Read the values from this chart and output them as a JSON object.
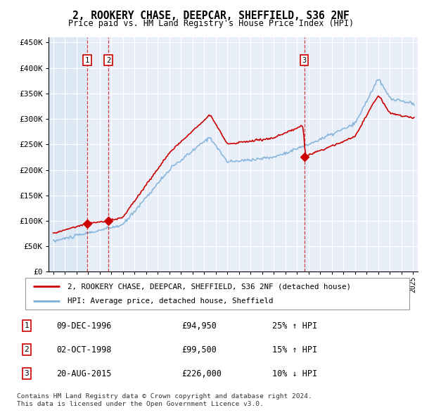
{
  "title": "2, ROOKERY CHASE, DEEPCAR, SHEFFIELD, S36 2NF",
  "subtitle": "Price paid vs. HM Land Registry's House Price Index (HPI)",
  "property_label": "2, ROOKERY CHASE, DEEPCAR, SHEFFIELD, S36 2NF (detached house)",
  "hpi_label": "HPI: Average price, detached house, Sheffield",
  "transactions": [
    {
      "num": 1,
      "date": "09-DEC-1996",
      "price": 94950,
      "hpi_rel": "25% ↑ HPI",
      "year": 1996.92
    },
    {
      "num": 2,
      "date": "02-OCT-1998",
      "price": 99500,
      "hpi_rel": "15% ↑ HPI",
      "year": 1998.75
    },
    {
      "num": 3,
      "date": "20-AUG-2015",
      "price": 226000,
      "hpi_rel": "10% ↓ HPI",
      "year": 2015.63
    }
  ],
  "footer": "Contains HM Land Registry data © Crown copyright and database right 2024.\nThis data is licensed under the Open Government Licence v3.0.",
  "property_color": "#cc0000",
  "hpi_color": "#7fb0d8",
  "hatch_bg_color": "#dde8f5",
  "plot_bg_color": "#e8eef8",
  "grid_color": "#ffffff",
  "ylim": [
    0,
    460000
  ],
  "yticks": [
    0,
    50000,
    100000,
    150000,
    200000,
    250000,
    300000,
    350000,
    400000,
    450000
  ],
  "xlim_start": 1993.6,
  "xlim_end": 2025.4,
  "hatch_end": 1996.92
}
